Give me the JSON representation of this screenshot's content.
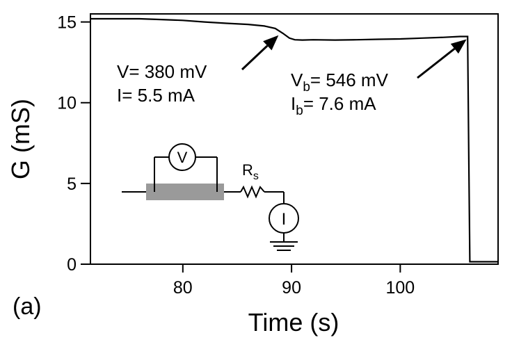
{
  "chart_data": {
    "type": "line",
    "panel_label": "(a)",
    "xlabel": "Time (s)",
    "ylabel": "G (mS)",
    "xlim": [
      71.5,
      109
    ],
    "ylim": [
      0,
      15.5
    ],
    "x_ticks": [
      80,
      90,
      100
    ],
    "y_ticks": [
      0,
      5,
      10,
      15
    ],
    "grid": false,
    "series": [
      {
        "name": "",
        "x": [
          71.5,
          76,
          78,
          80,
          82,
          84,
          86,
          87.5,
          88.5,
          89.2,
          89.8,
          90.3,
          91,
          92,
          94,
          96,
          98,
          100,
          102,
          104,
          105.5,
          106.2,
          106.3,
          106.4,
          109
        ],
        "y": [
          15.2,
          15.2,
          15.15,
          15.1,
          15.0,
          14.92,
          14.85,
          14.75,
          14.6,
          14.3,
          14.0,
          13.9,
          13.88,
          13.9,
          13.88,
          13.9,
          13.93,
          13.95,
          14.0,
          14.05,
          14.1,
          14.1,
          7.0,
          0.15,
          0.15
        ]
      }
    ],
    "annotations": [
      {
        "lines": [
          {
            "parts": [
              {
                "text": "V= 380 mV",
                "sub": false
              }
            ]
          },
          {
            "parts": [
              {
                "text": "I= 5.5 mA",
                "sub": false
              }
            ]
          }
        ],
        "arrow_to": [
          88.8,
          14.35
        ]
      },
      {
        "lines": [
          {
            "parts": [
              {
                "text": "V",
                "sub": false
              },
              {
                "text": "b",
                "sub": true
              },
              {
                "text": "= 546 mV",
                "sub": false
              }
            ]
          },
          {
            "parts": [
              {
                "text": "I",
                "sub": false
              },
              {
                "text": "b",
                "sub": true
              },
              {
                "text": "= 7.6 mA",
                "sub": false
              }
            ]
          }
        ],
        "arrow_to": [
          106.1,
          14.1
        ]
      }
    ],
    "inset": {
      "voltmeter": "V",
      "ammeter": "I",
      "resistor": {
        "main": "R",
        "sub": "s"
      }
    }
  }
}
